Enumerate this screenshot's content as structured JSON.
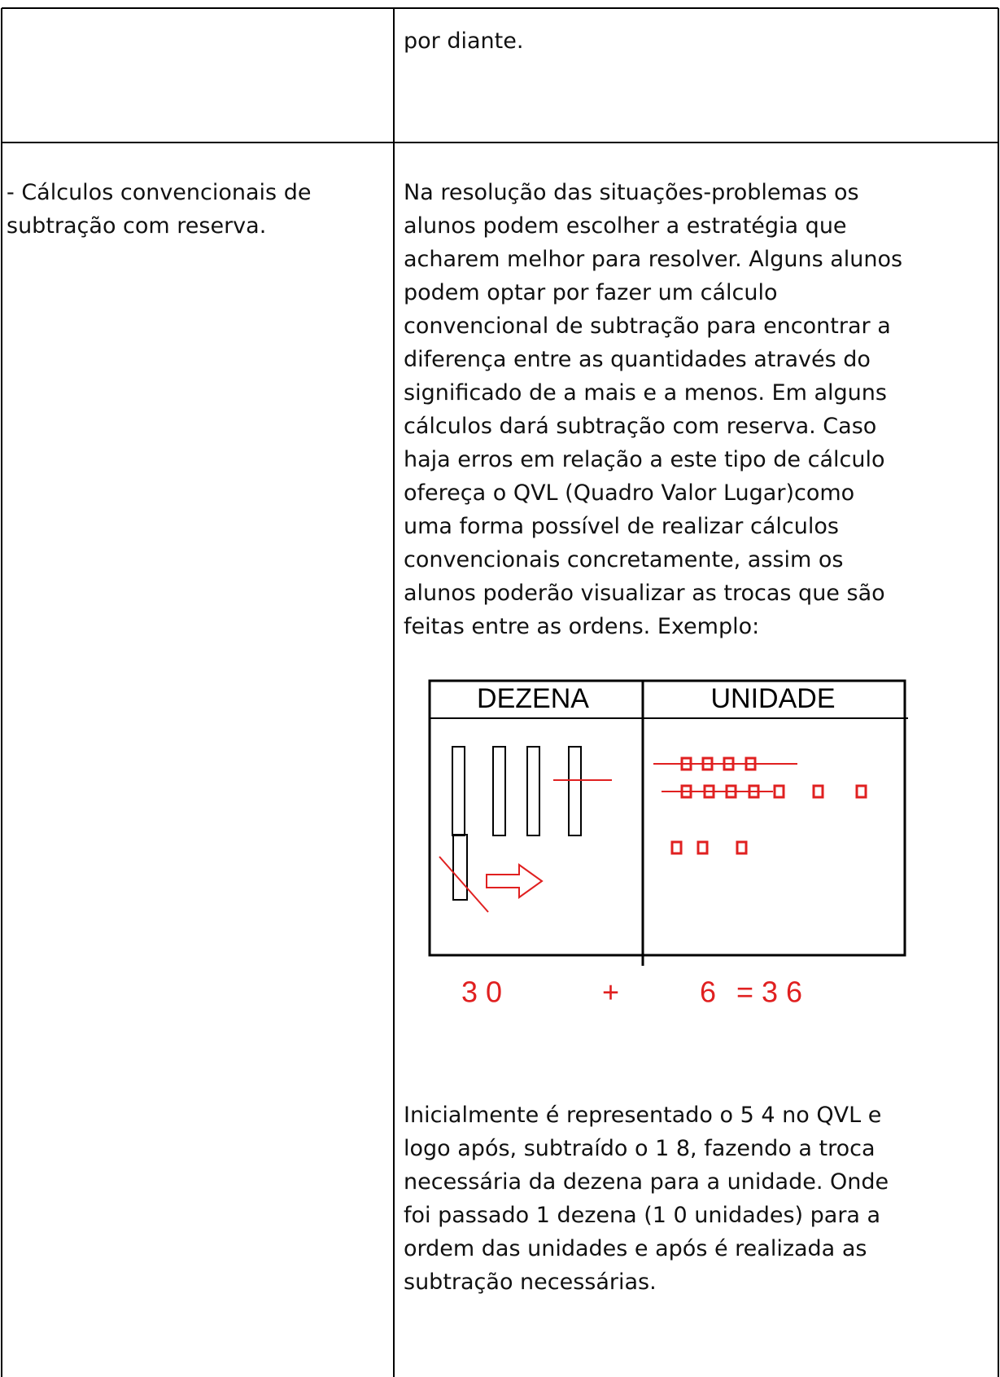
{
  "table": {
    "rows": [
      {
        "right": {
          "lines": [
            "por diante."
          ]
        }
      },
      {
        "left": {
          "lines": [
            "- Cálculos convencionais de",
            "subtração com reserva."
          ]
        },
        "right": {
          "paragraph_1": [
            "Na resolução das situações-problemas os",
            "alunos podem escolher a estratégia que",
            "acharem melhor para resolver. Alguns alunos",
            "podem optar por fazer um cálculo",
            "convencional de subtração para encontrar a",
            "diferença entre as quantidades através do",
            "significado de a mais e a menos. Em alguns",
            "cálculos dará subtração com reserva. Caso",
            "haja erros em relação a este tipo de cálculo",
            "ofereça o QVL (Quadro Valor  Lugar)como",
            "uma forma possível de realizar cálculos",
            "convencionais concretamente, assim os",
            "alunos poderão  visualizar as trocas que são",
            "feitas entre as ordens. Exemplo:"
          ],
          "figure": {
            "headers": [
              "DEZENA",
              "UNIDADE"
            ],
            "equation": [
              "3 0",
              "+",
              "6",
              "= 3 6"
            ]
          },
          "paragraph_2": [
            "Inicialmente é representado o 5 4 no QVL e",
            "logo após, subtraído o 1 8, fazendo a troca",
            "necessária da dezena para a unidade. Onde",
            "foi passado 1 dezena (1 0 unidades) para a",
            "ordem das unidades e após é realizada as",
            "subtração necessárias."
          ]
        }
      }
    ]
  }
}
